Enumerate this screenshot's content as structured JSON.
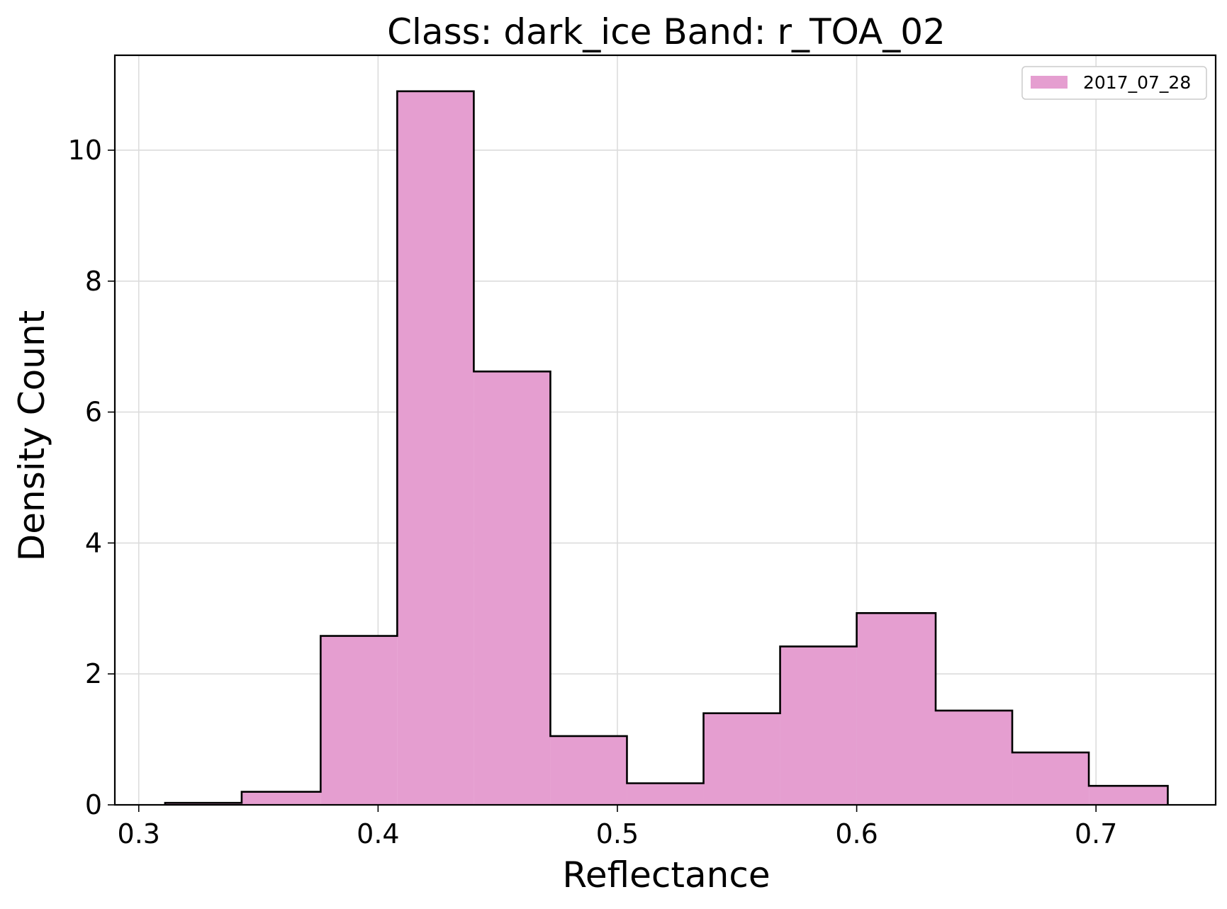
{
  "chart_data": {
    "type": "histogram",
    "title": "Class: dark_ice Band: r_TOA_02",
    "xlabel": "Reflectance",
    "ylabel": "Density Count",
    "xlim": [
      0.29,
      0.75
    ],
    "ylim": [
      0,
      11.45
    ],
    "xticks": [
      0.3,
      0.4,
      0.5,
      0.6,
      0.7
    ],
    "xtick_labels": [
      "0.3",
      "0.4",
      "0.5",
      "0.6",
      "0.7"
    ],
    "yticks": [
      0,
      2,
      4,
      6,
      8,
      10
    ],
    "ytick_labels": [
      "0",
      "2",
      "4",
      "6",
      "8",
      "10"
    ],
    "grid": true,
    "legend_position": "top-right",
    "series": [
      {
        "name": "2017_07_28",
        "color": "#e59ed0",
        "edge_color": "#000000",
        "bin_edges": [
          0.311,
          0.343,
          0.376,
          0.408,
          0.44,
          0.472,
          0.504,
          0.536,
          0.568,
          0.6,
          0.633,
          0.665,
          0.697,
          0.73
        ],
        "values": [
          0.03,
          0.2,
          2.58,
          10.9,
          6.62,
          1.05,
          0.33,
          1.4,
          2.42,
          2.93,
          1.44,
          0.8,
          0.29
        ]
      }
    ]
  }
}
